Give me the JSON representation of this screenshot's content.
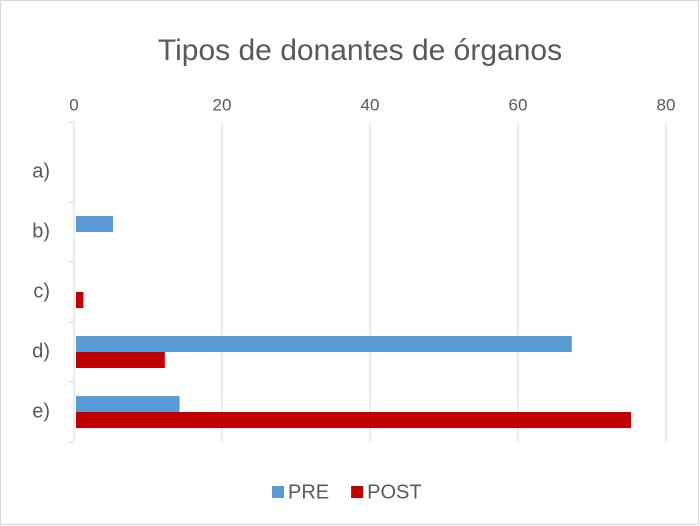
{
  "chart_data": {
    "type": "bar",
    "orientation": "horizontal",
    "title": "Tipos de donantes de órganos",
    "categories": [
      "a)",
      "b)",
      "c)",
      "d)",
      "e)"
    ],
    "series": [
      {
        "name": "PRE",
        "color": "#5b9bd5",
        "values": [
          0,
          5,
          0,
          67,
          14
        ]
      },
      {
        "name": "POST",
        "color": "#c00000",
        "values": [
          0,
          0,
          1,
          12,
          75
        ]
      }
    ],
    "xlim": [
      0,
      80
    ],
    "xticks": [
      0,
      20,
      40,
      60,
      80
    ],
    "grid": true,
    "legend": "bottom"
  }
}
